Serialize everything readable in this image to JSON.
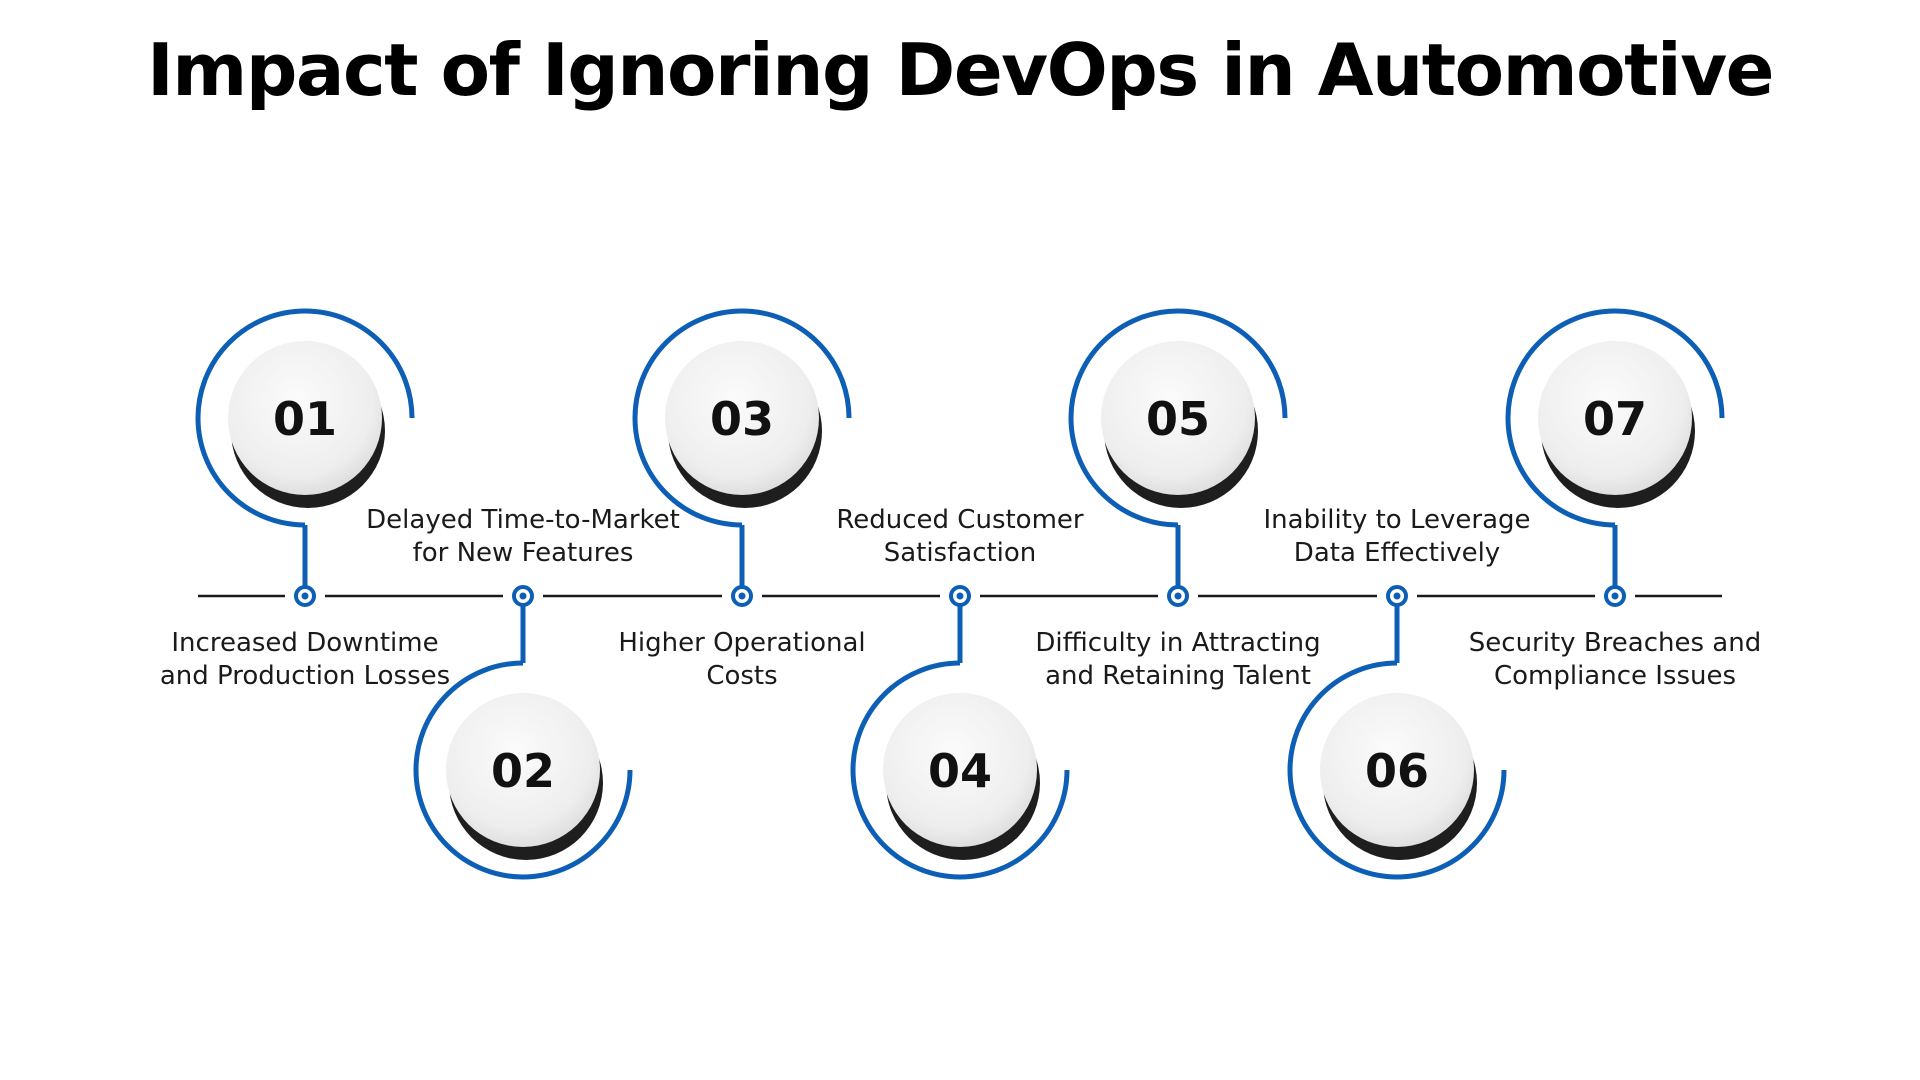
{
  "title": "Impact of Ignoring DevOps in Automotive",
  "accent_color": "#0d5fb5",
  "steps": [
    {
      "number": "01",
      "label": "Increased Downtime and Production Losses",
      "position": "top"
    },
    {
      "number": "02",
      "label": "Delayed Time-to-Market for New Features",
      "position": "bottom"
    },
    {
      "number": "03",
      "label": "Higher Operational Costs",
      "position": "top"
    },
    {
      "number": "04",
      "label": "Reduced Customer Satisfaction",
      "position": "bottom"
    },
    {
      "number": "05",
      "label": "Difficulty in Attracting and Retaining Talent",
      "position": "top"
    },
    {
      "number": "06",
      "label": "Inability to Leverage Data Effectively",
      "position": "bottom"
    },
    {
      "number": "07",
      "label": "Security Breaches and Compliance Issues",
      "position": "top"
    }
  ]
}
